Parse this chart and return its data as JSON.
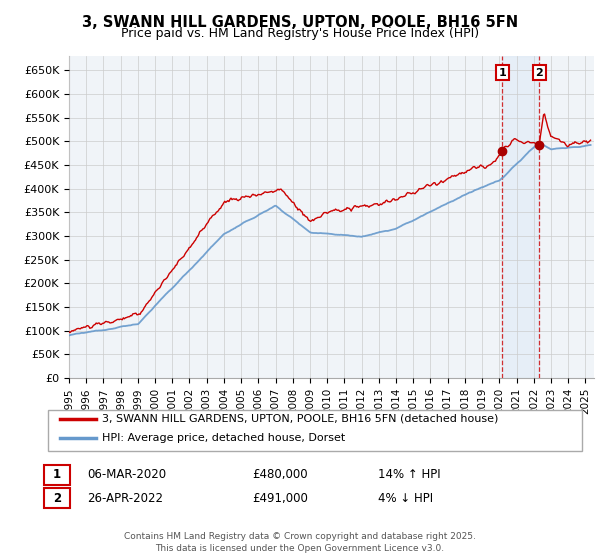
{
  "title": "3, SWANN HILL GARDENS, UPTON, POOLE, BH16 5FN",
  "subtitle": "Price paid vs. HM Land Registry's House Price Index (HPI)",
  "ylabel_ticks": [
    "£0",
    "£50K",
    "£100K",
    "£150K",
    "£200K",
    "£250K",
    "£300K",
    "£350K",
    "£400K",
    "£450K",
    "£500K",
    "£550K",
    "£600K",
    "£650K"
  ],
  "ytick_values": [
    0,
    50000,
    100000,
    150000,
    200000,
    250000,
    300000,
    350000,
    400000,
    450000,
    500000,
    550000,
    600000,
    650000
  ],
  "ylim": [
    0,
    680000
  ],
  "xlim_start": 1995.0,
  "xlim_end": 2025.5,
  "red_line_color": "#cc0000",
  "blue_line_color": "#6699cc",
  "grid_color": "#cccccc",
  "background_color": "#ffffff",
  "shaded_region_color": "#ddeeff",
  "marker1_x": 2020.17,
  "marker1_y": 480000,
  "marker2_x": 2022.32,
  "marker2_y": 491000,
  "legend_red_label": "3, SWANN HILL GARDENS, UPTON, POOLE, BH16 5FN (detached house)",
  "legend_blue_label": "HPI: Average price, detached house, Dorset",
  "annotation1_date": "06-MAR-2020",
  "annotation1_price": "£480,000",
  "annotation1_hpi": "14% ↑ HPI",
  "annotation2_date": "26-APR-2022",
  "annotation2_price": "£491,000",
  "annotation2_hpi": "4% ↓ HPI",
  "footer": "Contains HM Land Registry data © Crown copyright and database right 2025.\nThis data is licensed under the Open Government Licence v3.0.",
  "xtick_years": [
    1995,
    1996,
    1997,
    1998,
    1999,
    2000,
    2001,
    2002,
    2003,
    2004,
    2005,
    2006,
    2007,
    2008,
    2009,
    2010,
    2011,
    2012,
    2013,
    2014,
    2015,
    2016,
    2017,
    2018,
    2019,
    2020,
    2021,
    2022,
    2023,
    2024,
    2025
  ]
}
